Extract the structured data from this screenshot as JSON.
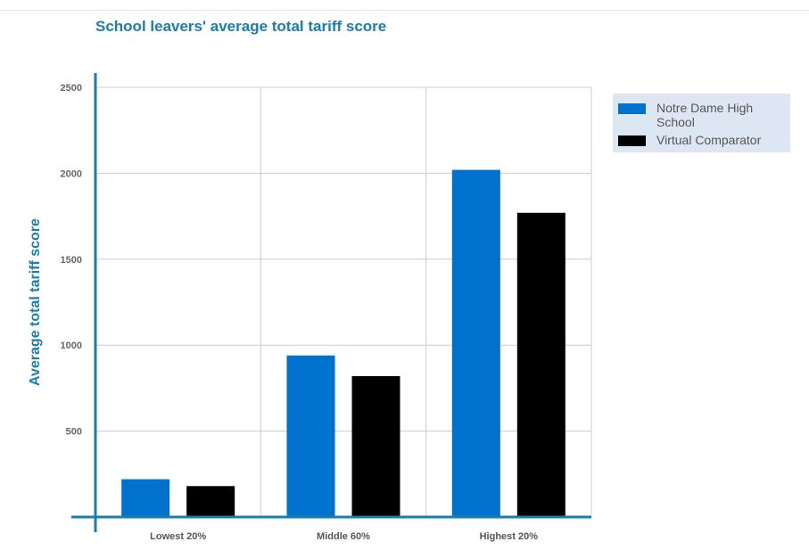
{
  "chart_data": {
    "type": "bar",
    "title": "School leavers' average total tariff score",
    "ylabel": "Average total tariff score",
    "xlabel": "",
    "categories": [
      "Lowest 20%",
      "Middle 60%",
      "Highest 20%"
    ],
    "series": [
      {
        "name": "Notre Dame High School",
        "values": [
          220,
          940,
          2020
        ],
        "color": "#0072ce"
      },
      {
        "name": "Virtual Comparator",
        "values": [
          180,
          820,
          1770
        ],
        "color": "#000000"
      }
    ],
    "ylim": [
      0,
      2500
    ],
    "yticks": [
      500,
      1000,
      1500,
      2000,
      2500
    ],
    "grid": true,
    "legend_position": "top-right"
  }
}
